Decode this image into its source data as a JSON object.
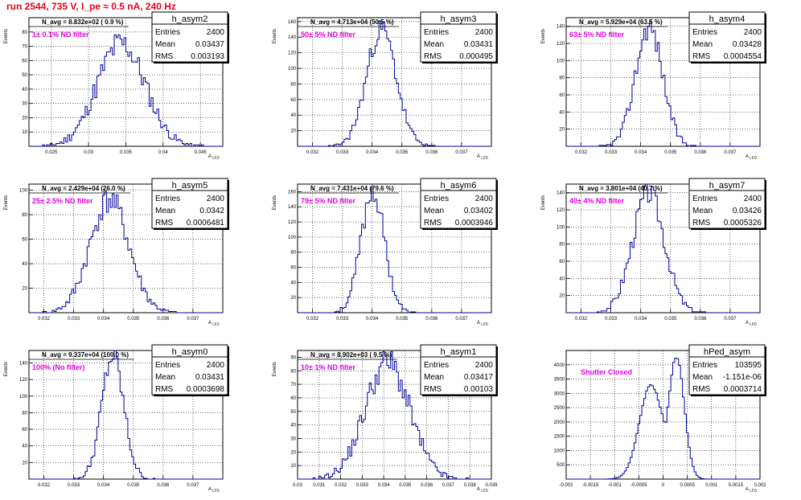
{
  "run_title": "run 2544,   735 V, I_pe ≈ 0.5 nA, 240 Hz",
  "chart_data": [
    {
      "type": "bar",
      "id": "h_asym2",
      "title": "h_asym2",
      "navg": "N_avg = 8.832e+02 ( 0.9 %)",
      "filter_label": "1± 0.1% ND filter",
      "ylabel": "Events",
      "xlabel": "A_LED",
      "xlim": [
        0.022,
        0.048
      ],
      "ylim": [
        0,
        90
      ],
      "xticks": [
        0.025,
        0.03,
        0.035,
        0.04,
        0.045
      ],
      "xtick_labels": [
        "0.025",
        "0.03",
        "0.035",
        "0.04",
        "0.045"
      ],
      "yticks": [
        10,
        20,
        30,
        40,
        50,
        60,
        70,
        80
      ],
      "ytick_labels": [
        "10",
        "20",
        "30",
        "40",
        "50",
        "60",
        "70",
        "80"
      ],
      "stats": {
        "entries_label": "Entries",
        "entries": "2400",
        "mean_label": "Mean",
        "mean": "0.03437",
        "rms_label": "RMS",
        "rms": "0.003193"
      },
      "dist": {
        "mean": 0.03437,
        "sigma": 0.00319,
        "peak": 72,
        "nbins": 100,
        "seed": 11
      }
    },
    {
      "type": "bar",
      "id": "h_asym3",
      "title": "h_asym3",
      "navg": "N_avg = 4.713e+04 (50.5 %)",
      "filter_label": "50± 5% ND filter",
      "ylabel": "Events",
      "xlabel": "A_LED",
      "xlim": [
        0.0315,
        0.038
      ],
      "ylim": [
        0,
        165
      ],
      "xticks": [
        0.032,
        0.033,
        0.034,
        0.035,
        0.036,
        0.037
      ],
      "xtick_labels": [
        "0.032",
        "0.033",
        "0.034",
        "0.035",
        "0.036",
        "0.037"
      ],
      "yticks": [
        20,
        40,
        60,
        80,
        100,
        120,
        140,
        160
      ],
      "ytick_labels": [
        "20",
        "40",
        "60",
        "80",
        "100",
        "120",
        "140",
        "160"
      ],
      "stats": {
        "entries_label": "Entries",
        "entries": "2400",
        "mean_label": "Mean",
        "mean": "0.03431",
        "rms_label": "RMS",
        "rms": "0.000495"
      },
      "dist": {
        "mean": 0.03431,
        "sigma": 0.000495,
        "peak": 150,
        "nbins": 100,
        "seed": 23
      }
    },
    {
      "type": "bar",
      "id": "h_asym4",
      "title": "h_asym4",
      "navg": "N_avg = 5.929e+04 (63.5 %)",
      "filter_label": "63± 5% ND filter",
      "ylabel": "Events",
      "xlabel": "A_LED",
      "xlim": [
        0.0315,
        0.038
      ],
      "ylim": [
        0,
        150
      ],
      "xticks": [
        0.032,
        0.033,
        0.034,
        0.035,
        0.036,
        0.037
      ],
      "xtick_labels": [
        "0.032",
        "0.033",
        "0.034",
        "0.035",
        "0.036",
        "0.037"
      ],
      "yticks": [
        20,
        40,
        60,
        80,
        100,
        120,
        140
      ],
      "ytick_labels": [
        "20",
        "40",
        "60",
        "80",
        "100",
        "120",
        "140"
      ],
      "stats": {
        "entries_label": "Entries",
        "entries": "2400",
        "mean_label": "Mean",
        "mean": "0.03428",
        "rms_label": "RMS",
        "rms": "0.0004554"
      },
      "dist": {
        "mean": 0.03428,
        "sigma": 0.000455,
        "peak": 140,
        "nbins": 100,
        "seed": 37
      }
    },
    {
      "type": "bar",
      "id": "h_asym5",
      "title": "h_asym5",
      "navg": "N_avg = 2.429e+04 (26.0 %)",
      "filter_label": "25± 2.5% ND filter",
      "ylabel": "Events",
      "xlabel": "A_LED",
      "xlim": [
        0.0315,
        0.038
      ],
      "ylim": [
        0,
        105
      ],
      "xticks": [
        0.032,
        0.033,
        0.034,
        0.035,
        0.036,
        0.037
      ],
      "xtick_labels": [
        "0.032",
        "0.033",
        "0.034",
        "0.035",
        "0.036",
        "0.037"
      ],
      "yticks": [
        20,
        40,
        60,
        80,
        100
      ],
      "ytick_labels": [
        "20",
        "40",
        "60",
        "80",
        "100"
      ],
      "stats": {
        "entries_label": "Entries",
        "entries": "2400",
        "mean_label": "Mean",
        "mean": "0.0342",
        "rms_label": "RMS",
        "rms": "0.0006481"
      },
      "dist": {
        "mean": 0.0342,
        "sigma": 0.000648,
        "peak": 92,
        "nbins": 100,
        "seed": 41
      }
    },
    {
      "type": "bar",
      "id": "h_asym6",
      "title": "h_asym6",
      "navg": "N_avg = 7.431e+04 (79.6 %)",
      "filter_label": "79± 5% ND filter",
      "ylabel": "Events",
      "xlabel": "A_LED",
      "xlim": [
        0.0315,
        0.038
      ],
      "ylim": [
        0,
        170
      ],
      "xticks": [
        0.032,
        0.033,
        0.034,
        0.035,
        0.036,
        0.037
      ],
      "xtick_labels": [
        "0.032",
        "0.033",
        "0.034",
        "0.035",
        "0.036",
        "0.037"
      ],
      "yticks": [
        20,
        40,
        60,
        80,
        100,
        120,
        140,
        160
      ],
      "ytick_labels": [
        "20",
        "40",
        "60",
        "80",
        "100",
        "120",
        "140",
        "160"
      ],
      "stats": {
        "entries_label": "Entries",
        "entries": "2400",
        "mean_label": "Mean",
        "mean": "0.03402",
        "rms_label": "RMS",
        "rms": "0.0003946"
      },
      "dist": {
        "mean": 0.03402,
        "sigma": 0.000395,
        "peak": 160,
        "nbins": 100,
        "seed": 53
      }
    },
    {
      "type": "bar",
      "id": "h_asym7",
      "title": "h_asym7",
      "navg": "N_avg = 3.801e+04 (40.7 %)",
      "filter_label": "40± 4% ND filter",
      "ylabel": "Events",
      "xlabel": "A_LED",
      "xlim": [
        0.0315,
        0.038
      ],
      "ylim": [
        0,
        150
      ],
      "xticks": [
        0.032,
        0.033,
        0.034,
        0.035,
        0.036,
        0.037
      ],
      "xtick_labels": [
        "0.032",
        "0.033",
        "0.034",
        "0.035",
        "0.036",
        "0.037"
      ],
      "yticks": [
        20,
        40,
        60,
        80,
        100,
        120,
        140
      ],
      "ytick_labels": [
        "20",
        "40",
        "60",
        "80",
        "100",
        "120",
        "140"
      ],
      "stats": {
        "entries_label": "Entries",
        "entries": "2400",
        "mean_label": "Mean",
        "mean": "0.03426",
        "rms_label": "RMS",
        "rms": "0.0005326"
      },
      "dist": {
        "mean": 0.03426,
        "sigma": 0.000533,
        "peak": 140,
        "nbins": 100,
        "seed": 67
      }
    },
    {
      "type": "bar",
      "id": "h_asym0",
      "title": "h_asym0",
      "navg": "N_avg = 9.337e+04 (100.0 %)",
      "filter_label": "100% (No filter)",
      "ylabel": "Events",
      "xlabel": "A_LED",
      "xlim": [
        0.0315,
        0.038
      ],
      "ylim": [
        0,
        155
      ],
      "xticks": [
        0.032,
        0.033,
        0.034,
        0.035,
        0.036,
        0.037
      ],
      "xtick_labels": [
        "0.032",
        "0.033",
        "0.034",
        "0.035",
        "0.036",
        "0.037"
      ],
      "yticks": [
        20,
        40,
        60,
        80,
        100,
        120,
        140
      ],
      "ytick_labels": [
        "20",
        "40",
        "60",
        "80",
        "100",
        "120",
        "140"
      ],
      "stats": {
        "entries_label": "Entries",
        "entries": "2400",
        "mean_label": "Mean",
        "mean": "0.03431",
        "rms_label": "RMS",
        "rms": "0.0003698"
      },
      "dist": {
        "mean": 0.03431,
        "sigma": 0.00037,
        "peak": 148,
        "nbins": 100,
        "seed": 79
      }
    },
    {
      "type": "bar",
      "id": "h_asym1",
      "title": "h_asym1",
      "navg": "N_avg = 8.902e+03 ( 9.5 %)",
      "filter_label": "10± 1% ND filter",
      "ylabel": "Events",
      "xlabel": "A_LED",
      "xlim": [
        0.03,
        0.039
      ],
      "ylim": [
        0,
        95
      ],
      "xticks": [
        0.03,
        0.031,
        0.032,
        0.033,
        0.034,
        0.035,
        0.036,
        0.037,
        0.038,
        0.039
      ],
      "xtick_labels": [
        "0.03",
        "0.031",
        "0.032",
        "0.033",
        "0.034",
        "0.035",
        "0.036",
        "0.037",
        "0.038",
        "0.039"
      ],
      "yticks": [
        10,
        20,
        30,
        40,
        50,
        60,
        70,
        80,
        90
      ],
      "ytick_labels": [
        "10",
        "20",
        "30",
        "40",
        "50",
        "60",
        "70",
        "80",
        "90"
      ],
      "stats": {
        "entries_label": "Entries",
        "entries": "2400",
        "mean_label": "Mean",
        "mean": "0.03417",
        "rms_label": "RMS",
        "rms": "0.00103"
      },
      "dist": {
        "mean": 0.03417,
        "sigma": 0.00103,
        "peak": 86,
        "nbins": 100,
        "seed": 91
      }
    },
    {
      "type": "bar",
      "id": "hPed_asym",
      "title": "hPed_asym",
      "navg": "",
      "filter_label": "Shutter Closed",
      "ylabel": "",
      "xlabel": "A_LED",
      "xlim": [
        -0.002,
        0.002
      ],
      "ylim": [
        0,
        4500
      ],
      "xticks": [
        -0.002,
        -0.0015,
        -0.001,
        -0.0005,
        0,
        0.0005,
        0.001,
        0.0015,
        0.002
      ],
      "xtick_labels": [
        "-0.002",
        "-0.0015",
        "-0.001",
        "-0.0005",
        "0",
        "0.0005",
        "0.001",
        "0.0015",
        "0.002"
      ],
      "yticks": [
        500,
        1000,
        1500,
        2000,
        2500,
        3000,
        3500,
        4000
      ],
      "ytick_labels": [
        "500",
        "1000",
        "1500",
        "2000",
        "2500",
        "3000",
        "3500",
        "4000"
      ],
      "stats": {
        "entries_label": "Entries",
        "entries": "103595",
        "mean_label": "Mean",
        "mean": "-1.151e-06",
        "rms_label": "RMS",
        "rms": "0.0003714"
      },
      "dist": {
        "mean": -1.151e-06,
        "sigma": 0.000371,
        "peak": 4300,
        "nbins": 100,
        "seed": 97,
        "bimodal": true
      }
    }
  ]
}
